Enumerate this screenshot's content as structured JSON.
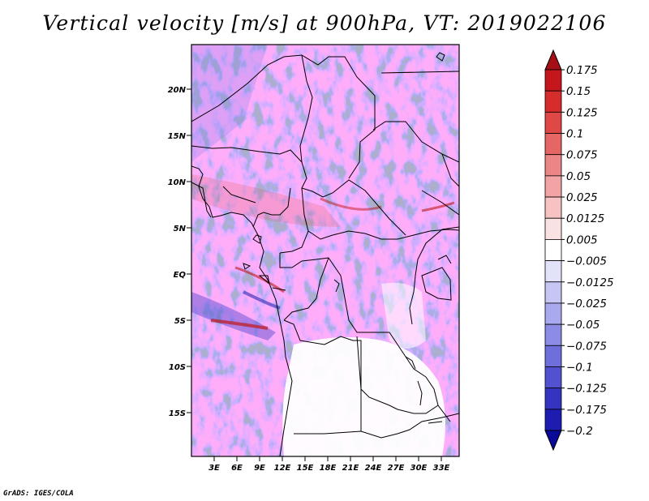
{
  "title": "Vertical velocity [m/s] at 900hPa, VT: 2019022106",
  "footer": "GrADS: IGES/COLA",
  "lat_labels": [
    "20N",
    "15N",
    "10N",
    "5N",
    "EQ",
    "5S",
    "10S",
    "15S"
  ],
  "lon_labels": [
    "3E",
    "6E",
    "9E",
    "12E",
    "15E",
    "18E",
    "21E",
    "24E",
    "27E",
    "30E",
    "33E"
  ],
  "colorbar": {
    "labels": [
      "0.175",
      "0.15",
      "0.125",
      "0.1",
      "0.075",
      "0.05",
      "0.025",
      "0.0125",
      "0.005",
      "-0.005",
      "-0.0125",
      "-0.025",
      "-0.05",
      "-0.075",
      "-0.1",
      "-0.125",
      "-0.175",
      "-0.2"
    ],
    "colors": [
      "#a50f15",
      "#c4161c",
      "#d62c2c",
      "#e04848",
      "#e66565",
      "#ec8585",
      "#f2a3a3",
      "#f7c2c2",
      "#fbe2e2",
      "#ffffff",
      "#e2e2fb",
      "#c6c6f5",
      "#a9a9ef",
      "#8c8ce6",
      "#6f6fdc",
      "#5252d0",
      "#3434c0",
      "#1c1cb0",
      "#0a0a9a"
    ]
  }
}
